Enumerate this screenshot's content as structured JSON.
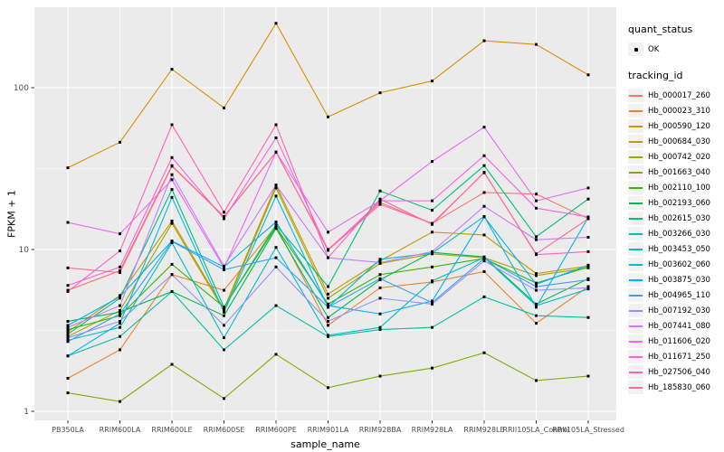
{
  "chart_data": {
    "type": "line",
    "title": "",
    "xlabel": "sample_name",
    "ylabel": "FPKM + 1",
    "y_scale": "log10",
    "y_ticks": [
      1,
      10,
      100
    ],
    "y_minor_ticks": [
      3.162,
      31.62,
      316.2
    ],
    "ylim": [
      1,
      320
    ],
    "grid": true,
    "panel_background": "#EBEBEB",
    "grid_color": "#FFFFFF",
    "point_color": "#000000",
    "tick_label_color": "#4D4D4D",
    "legend_position": "right",
    "categories": [
      "PB350LA",
      "RRIM600LA",
      "RRIM600LE",
      "RRIM600SE",
      "RRIM600PE",
      "RRIM901LA",
      "RRIM928BA",
      "RRIM928LA",
      "RRIM928LE",
      "RRII105LA_Control",
      "RRII105LA_Stressed"
    ],
    "series": [
      {
        "name": "Hb_000017_260",
        "color": "#F8766D",
        "values": [
          5.6,
          7.4,
          33,
          16,
          40,
          10,
          19.5,
          14.5,
          22.5,
          22,
          15.5
        ]
      },
      {
        "name": "Hb_000023_310",
        "color": "#EA8331",
        "values": [
          1.6,
          2.4,
          7.0,
          5.6,
          14,
          3.4,
          5.8,
          6.3,
          7.3,
          3.5,
          5.9
        ]
      },
      {
        "name": "Hb_000590_120",
        "color": "#D89000",
        "values": [
          32,
          46,
          130,
          75,
          250,
          66,
          93,
          110,
          195,
          185,
          120
        ]
      },
      {
        "name": "Hb_000684_030",
        "color": "#C09B00",
        "values": [
          3.1,
          5.2,
          15,
          4.3,
          25,
          5.3,
          8.5,
          12.8,
          12.3,
          7.1,
          7.9
        ]
      },
      {
        "name": "Hb_000742_020",
        "color": "#A3A500",
        "values": [
          2.9,
          4.2,
          14.5,
          4.2,
          24,
          5.0,
          8.2,
          9.4,
          8.9,
          6.9,
          7.7
        ]
      },
      {
        "name": "Hb_001663_040",
        "color": "#7CAE00",
        "values": [
          1.3,
          1.15,
          1.95,
          1.2,
          2.25,
          1.4,
          1.65,
          1.85,
          2.3,
          1.55,
          1.65
        ]
      },
      {
        "name": "Hb_002110_100",
        "color": "#39B600",
        "values": [
          3.2,
          3.9,
          8.1,
          4.4,
          13.8,
          4.6,
          7.0,
          7.8,
          8.8,
          6.2,
          7.8
        ]
      },
      {
        "name": "Hb_002193_060",
        "color": "#00BB4E",
        "values": [
          3.6,
          4.1,
          5.5,
          3.9,
          13.5,
          3.8,
          6.5,
          9.6,
          9.0,
          4.6,
          6.6
        ]
      },
      {
        "name": "Hb_002615_030",
        "color": "#00BF7D",
        "values": [
          3.0,
          5.0,
          23.5,
          4.4,
          14.2,
          5.9,
          23,
          17.5,
          33,
          12,
          20.5
        ]
      },
      {
        "name": "Hb_003266_030",
        "color": "#00C1A3",
        "values": [
          2.2,
          2.9,
          5.5,
          2.4,
          4.5,
          2.9,
          3.2,
          3.3,
          5.1,
          3.9,
          3.8
        ]
      },
      {
        "name": "Hb_003453_050",
        "color": "#00BFC4",
        "values": [
          2.75,
          3.3,
          11,
          2.85,
          10.3,
          2.95,
          3.3,
          6.4,
          8.9,
          4.5,
          5.7
        ]
      },
      {
        "name": "Hb_003602_060",
        "color": "#00BAE0",
        "values": [
          2.2,
          3.5,
          21,
          4.1,
          21.4,
          4.4,
          8.7,
          9.5,
          16,
          4.4,
          15.8
        ]
      },
      {
        "name": "Hb_003875_030",
        "color": "#00B0F6",
        "values": [
          3.4,
          5.1,
          11.3,
          7.8,
          14.8,
          4.5,
          4.0,
          4.8,
          15.9,
          6.1,
          8.0
        ]
      },
      {
        "name": "Hb_004965_110",
        "color": "#35A2FF",
        "values": [
          2.7,
          4.0,
          11.2,
          7.5,
          8.9,
          4.4,
          6.6,
          4.7,
          8.8,
          5.9,
          6.5
        ]
      },
      {
        "name": "Hb_007192_030",
        "color": "#9590FF",
        "values": [
          2.85,
          3.6,
          7.0,
          3.4,
          7.8,
          3.6,
          5.0,
          4.6,
          8.5,
          5.6,
          5.8
        ]
      },
      {
        "name": "Hb_007441_080",
        "color": "#C77CFF",
        "values": [
          3.3,
          4.5,
          29,
          7.9,
          25,
          8.9,
          8.3,
          9.7,
          18.5,
          11.5,
          11.9
        ]
      },
      {
        "name": "Hb_011606_020",
        "color": "#E76BF3",
        "values": [
          14.7,
          12.5,
          27,
          7.7,
          40,
          12.8,
          20,
          35,
          57,
          20,
          24
        ]
      },
      {
        "name": "Hb_011671_250",
        "color": "#FA62DB",
        "values": [
          6.0,
          7.8,
          37,
          15.5,
          49,
          9.9,
          20,
          20,
          38,
          18,
          15.9
        ]
      },
      {
        "name": "Hb_027506_040",
        "color": "#FF62BC",
        "values": [
          5.5,
          9.8,
          59,
          17,
          59,
          8.9,
          20.5,
          14.3,
          30,
          9.3,
          9.7
        ]
      },
      {
        "name": "Hb_185830_060",
        "color": "#FF6A98",
        "values": [
          7.7,
          7.2,
          32.7,
          15.9,
          40,
          9.9,
          19,
          14.5,
          29.8,
          9.4,
          15.5
        ]
      }
    ]
  },
  "legend": {
    "quant_status_title": "quant_status",
    "quant_status_items": [
      {
        "label": "OK"
      }
    ],
    "tracking_title": "tracking_id"
  }
}
